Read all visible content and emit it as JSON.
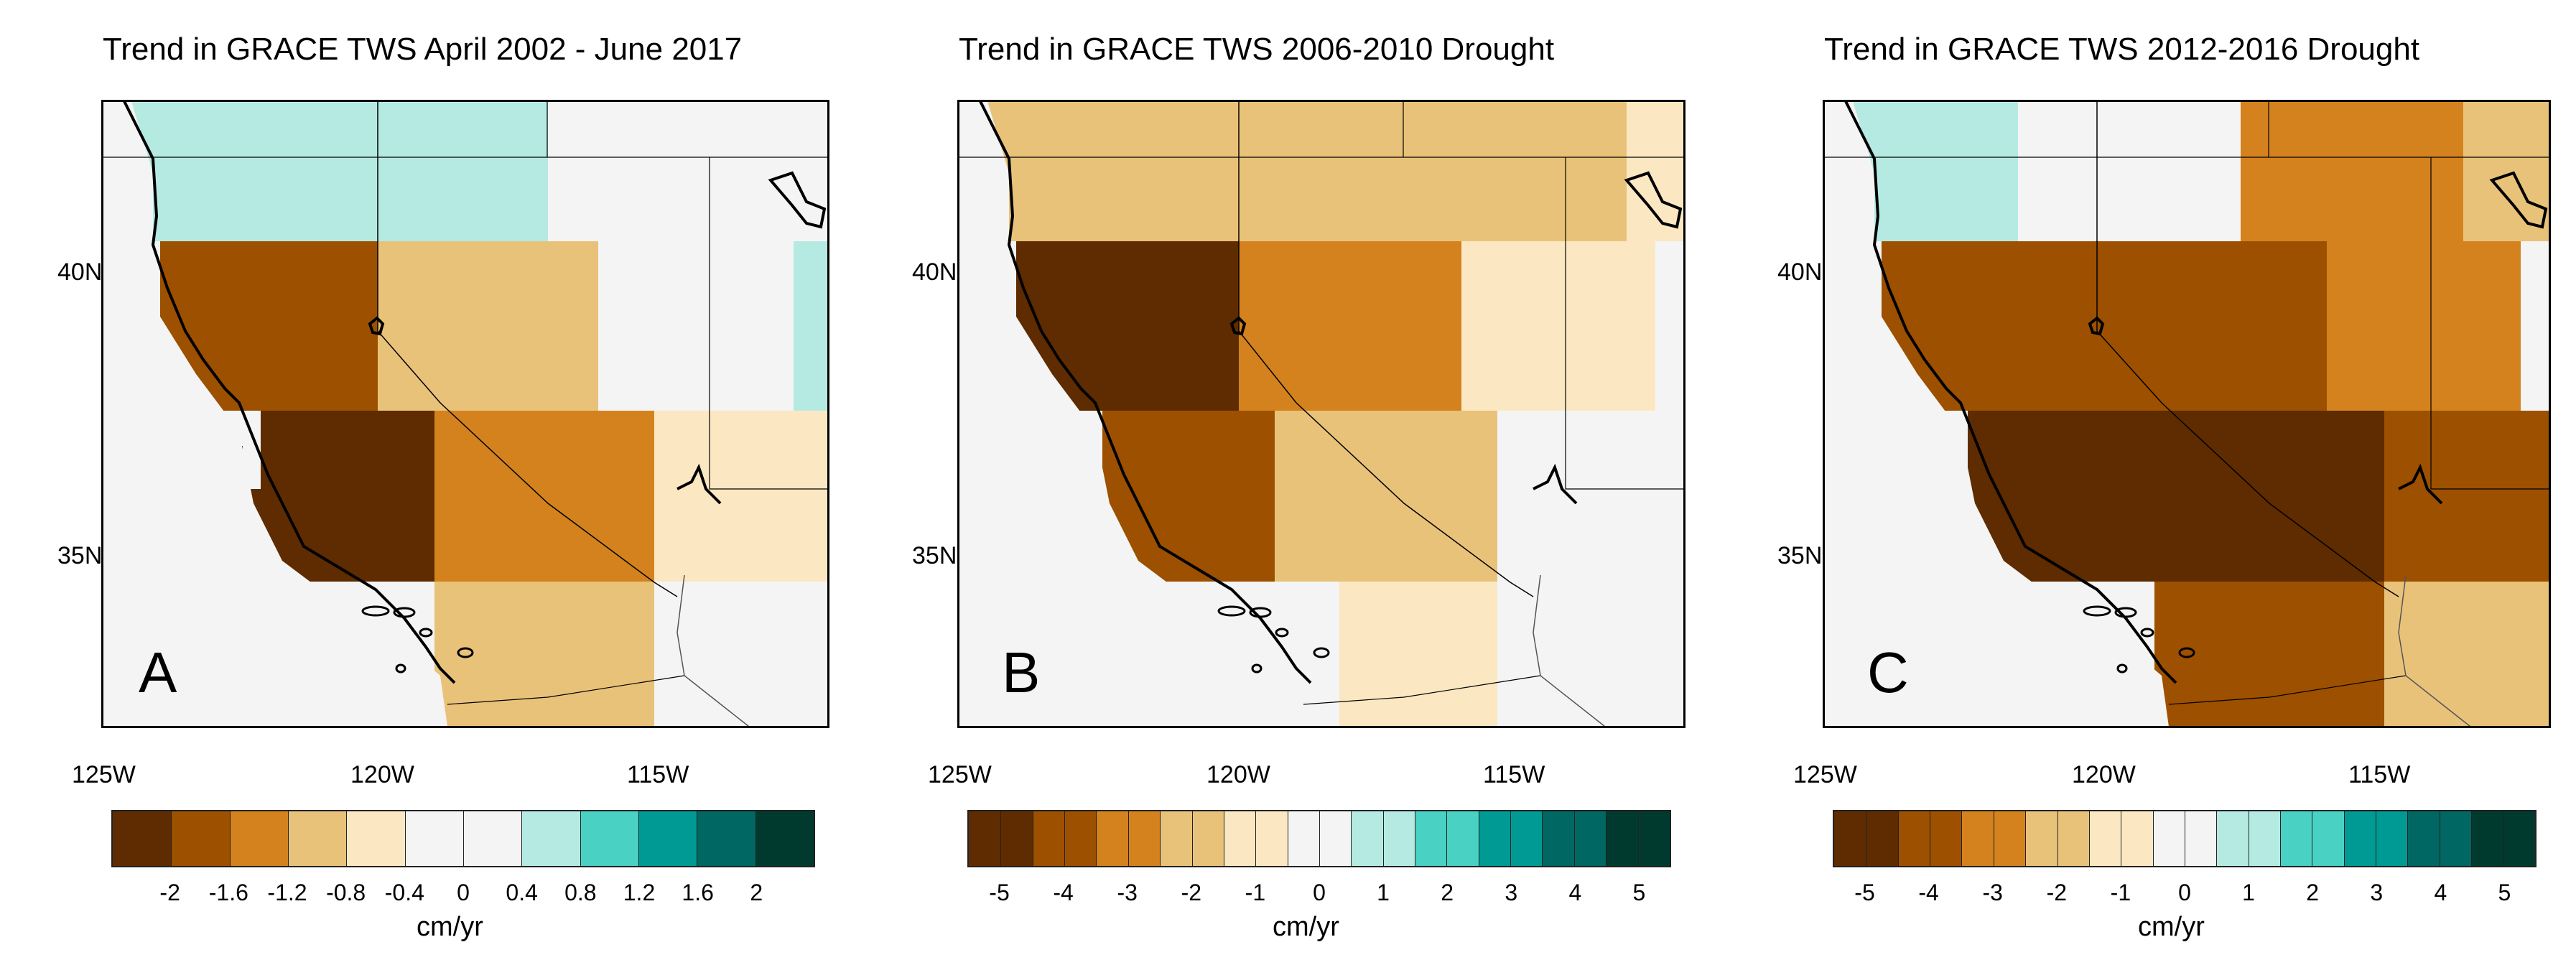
{
  "panels": [
    {
      "title": "Trend in GRACE TWS April 2002 - June 2017",
      "letter": "A",
      "lat_labels": [
        "40N",
        "35N"
      ],
      "lon_labels": [
        "125W",
        "120W",
        "115W"
      ],
      "colorbar": {
        "colors": [
          "#5e2c00",
          "#9c5000",
          "#d4821e",
          "#e9c27a",
          "#fbe8c2",
          "#f4f4f4",
          "#f4f4f4",
          "#b5eae2",
          "#49d1c4",
          "#009a94",
          "#006763",
          "#003a2e"
        ],
        "ticks": [
          "-2",
          "-1.6",
          "-1.2",
          "-0.8",
          "-0.4",
          "0",
          "0.4",
          "0.8",
          "1.2",
          "1.6",
          "2"
        ],
        "unit": "cm/yr"
      }
    },
    {
      "title": "Trend in GRACE TWS 2006-2010 Drought",
      "letter": "B",
      "lat_labels": [
        "40N",
        "35N"
      ],
      "lon_labels": [
        "125W",
        "120W",
        "115W"
      ],
      "colorbar": {
        "colors": [
          "#5e2c00",
          "#5e2c00",
          "#9c5000",
          "#9c5000",
          "#d4821e",
          "#d4821e",
          "#e9c27a",
          "#e9c27a",
          "#fbe8c2",
          "#fbe8c2",
          "#f4f4f4",
          "#f4f4f4",
          "#b5eae2",
          "#b5eae2",
          "#49d1c4",
          "#49d1c4",
          "#009a94",
          "#009a94",
          "#006763",
          "#006763",
          "#003a2e",
          "#003a2e"
        ],
        "ticks": [
          "-5",
          "-4",
          "-3",
          "-2",
          "-1",
          "0",
          "1",
          "2",
          "3",
          "4",
          "5"
        ],
        "unit": "cm/yr"
      }
    },
    {
      "title": "Trend in GRACE TWS 2012-2016 Drought",
      "letter": "C",
      "lat_labels": [
        "40N",
        "35N"
      ],
      "lon_labels": [
        "125W",
        "120W",
        "115W"
      ],
      "colorbar": {
        "colors": [
          "#5e2c00",
          "#5e2c00",
          "#9c5000",
          "#9c5000",
          "#d4821e",
          "#d4821e",
          "#e9c27a",
          "#e9c27a",
          "#fbe8c2",
          "#fbe8c2",
          "#f4f4f4",
          "#f4f4f4",
          "#b5eae2",
          "#b5eae2",
          "#49d1c4",
          "#49d1c4",
          "#009a94",
          "#009a94",
          "#006763",
          "#006763",
          "#003a2e",
          "#003a2e"
        ],
        "ticks": [
          "-5",
          "-4",
          "-3",
          "-2",
          "-1",
          "0",
          "1",
          "2",
          "3",
          "4",
          "5"
        ],
        "unit": "cm/yr"
      }
    }
  ]
}
